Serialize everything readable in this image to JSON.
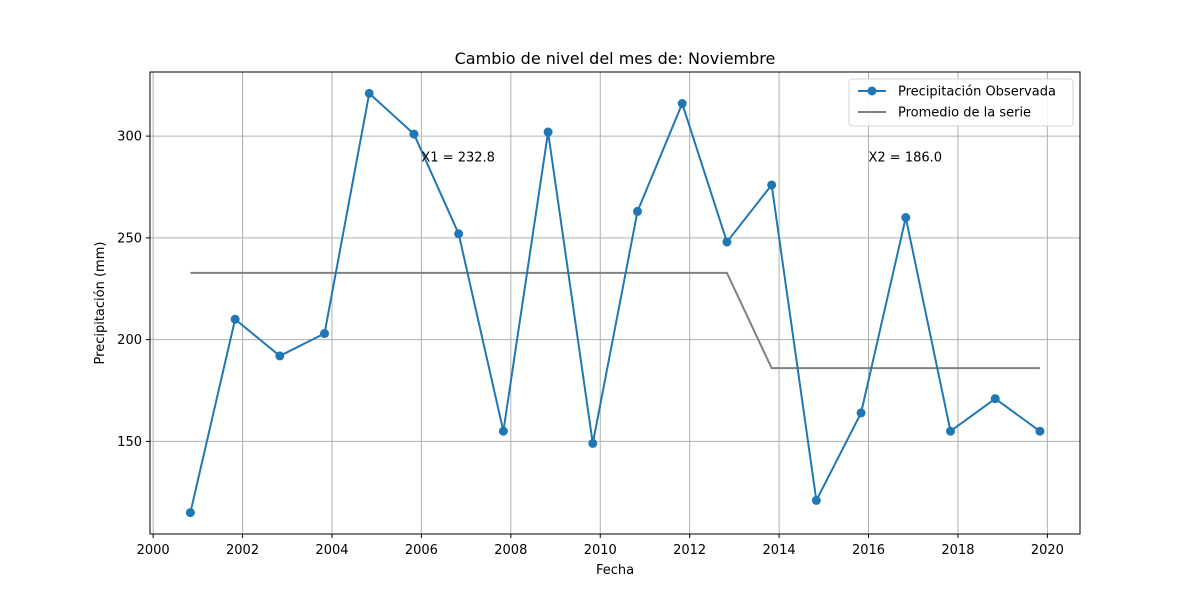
{
  "chart_data": {
    "type": "line",
    "title": "Cambio de nivel del mes de: Noviembre",
    "xlabel": "Fecha",
    "ylabel": "Precipitación (mm)",
    "xlim": [
      1999.93,
      2020.73
    ],
    "ylim": [
      104.5,
      331.5
    ],
    "x_ticks": [
      2000,
      2002,
      2004,
      2006,
      2008,
      2010,
      2012,
      2014,
      2016,
      2018,
      2020
    ],
    "y_ticks": [
      150,
      200,
      250,
      300
    ],
    "grid": true,
    "legend_position": "top-right",
    "series": [
      {
        "name": "Precipitación Observada",
        "color": "#1f77b4",
        "marker": "circle",
        "x": [
          "2000-11",
          "2001-11",
          "2002-11",
          "2003-11",
          "2004-11",
          "2005-11",
          "2006-11",
          "2007-11",
          "2008-11",
          "2009-11",
          "2010-11",
          "2011-11",
          "2012-11",
          "2013-11",
          "2014-11",
          "2015-11",
          "2016-11",
          "2017-11",
          "2018-11",
          "2019-11"
        ],
        "values": [
          115,
          210,
          192,
          203,
          321,
          301,
          252,
          155,
          302,
          149,
          263,
          316,
          248,
          276,
          121,
          164,
          260,
          155,
          171,
          155
        ]
      },
      {
        "name": "Promedio de la serie",
        "color": "#808080",
        "marker": "none",
        "x": [
          "2000-11",
          "2001-11",
          "2002-11",
          "2003-11",
          "2004-11",
          "2005-11",
          "2006-11",
          "2007-11",
          "2008-11",
          "2009-11",
          "2010-11",
          "2011-11",
          "2012-11",
          "2013-11",
          "2014-11",
          "2015-11",
          "2016-11",
          "2017-11",
          "2018-11",
          "2019-11"
        ],
        "values": [
          232.8,
          232.8,
          232.8,
          232.8,
          232.8,
          232.8,
          232.8,
          232.8,
          232.8,
          232.8,
          232.8,
          232.8,
          232.8,
          186.0,
          186.0,
          186.0,
          186.0,
          186.0,
          186.0,
          186.0
        ]
      }
    ],
    "annotations": [
      {
        "text": "X1 = 232.8",
        "x": 2006.0,
        "y": 290
      },
      {
        "text": "X2 = 186.0",
        "x": 2016.0,
        "y": 290
      }
    ]
  }
}
